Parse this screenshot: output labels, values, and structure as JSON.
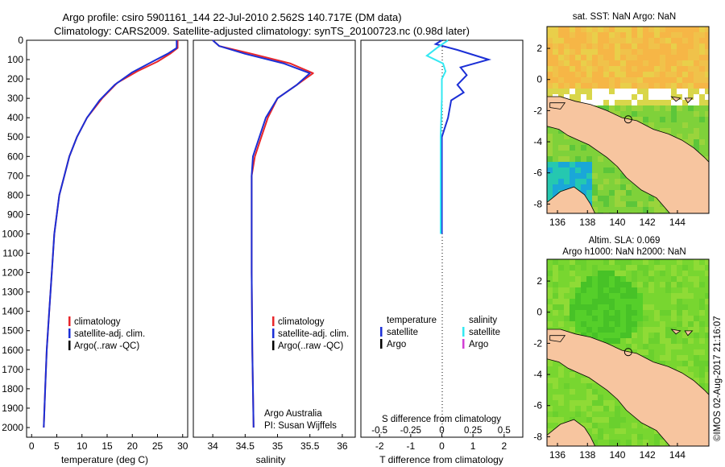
{
  "header": {
    "line1": "Argo profile: csiro 5901161_144 22-Jul-2010 2.562S 140.717E (DM data)",
    "line2": "Climatology: CARS2009. Satellite-adjusted climatology: synTS_20100723.nc (0.98d later)"
  },
  "colors": {
    "climatology": "#e8262a",
    "satellite": "#1b2fd6",
    "argo": "#000000",
    "sat_s": "#33e8f2",
    "argo_s": "#d23fd4",
    "land": "#f7c59f",
    "sea_warm": "#f4b042",
    "sea_green": "#2ac22a"
  },
  "chart_data": [
    {
      "type": "line",
      "xlabel": "temperature (deg C)",
      "xlim": [
        -1,
        31
      ],
      "xticks": [
        0,
        5,
        10,
        15,
        20,
        25,
        30
      ],
      "ylim": [
        0,
        2050
      ],
      "yticks": [
        0,
        100,
        200,
        300,
        400,
        500,
        600,
        700,
        800,
        900,
        1000,
        1100,
        1200,
        1300,
        1400,
        1500,
        1600,
        1700,
        1800,
        1900,
        2000
      ],
      "legend": [
        "climatology",
        "satellite-adj. clim.",
        "Argo(..raw -QC)"
      ],
      "series": [
        {
          "name": "climatology",
          "points": [
            [
              29,
              0
            ],
            [
              29,
              40
            ],
            [
              27.5,
              70
            ],
            [
              25,
              110
            ],
            [
              21,
              160
            ],
            [
              17,
              220
            ],
            [
              14,
              300
            ],
            [
              11,
              400
            ],
            [
              9,
              500
            ],
            [
              7.5,
              600
            ],
            [
              6.5,
              700
            ],
            [
              5.5,
              800
            ],
            [
              5,
              900
            ],
            [
              4.5,
              1000
            ],
            [
              4,
              1200
            ],
            [
              3.5,
              1400
            ],
            [
              3,
              1600
            ],
            [
              2.7,
              1800
            ],
            [
              2.4,
              2000
            ]
          ]
        },
        {
          "name": "satellite-adj. clim.",
          "points": [
            [
              28.8,
              0
            ],
            [
              28.8,
              40
            ],
            [
              27,
              70
            ],
            [
              24,
              110
            ],
            [
              20,
              165
            ],
            [
              16.5,
              230
            ],
            [
              13.5,
              310
            ],
            [
              11,
              400
            ],
            [
              9,
              500
            ],
            [
              7.5,
              600
            ],
            [
              6.5,
              700
            ],
            [
              5.5,
              800
            ],
            [
              5,
              900
            ],
            [
              4.5,
              1000
            ],
            [
              4,
              1200
            ],
            [
              3.5,
              1400
            ],
            [
              3,
              1600
            ],
            [
              2.7,
              1800
            ],
            [
              2.4,
              2000
            ]
          ]
        }
      ]
    },
    {
      "type": "line",
      "xlabel": "salinity",
      "xlim": [
        33.7,
        36.2
      ],
      "xticks": [
        34,
        34.5,
        35,
        35.5,
        36
      ],
      "ylim": [
        0,
        2050
      ],
      "legend": [
        "climatology",
        "satellite-adj. clim.",
        "Argo(..raw -QC)"
      ],
      "annotation": [
        "Argo Australia",
        "PI: Susan Wijffels"
      ],
      "series": [
        {
          "name": "climatology",
          "points": [
            [
              34,
              0
            ],
            [
              34.1,
              30
            ],
            [
              34.6,
              70
            ],
            [
              35.2,
              120
            ],
            [
              35.55,
              170
            ],
            [
              35.3,
              230
            ],
            [
              35,
              300
            ],
            [
              34.85,
              400
            ],
            [
              34.75,
              500
            ],
            [
              34.65,
              600
            ],
            [
              34.6,
              700
            ],
            [
              34.6,
              900
            ],
            [
              34.6,
              1200
            ],
            [
              34.61,
              1600
            ],
            [
              34.63,
              2000
            ]
          ]
        },
        {
          "name": "satellite-adj. clim.",
          "points": [
            [
              34,
              0
            ],
            [
              34.1,
              30
            ],
            [
              34.5,
              70
            ],
            [
              35.1,
              120
            ],
            [
              35.5,
              170
            ],
            [
              35.3,
              230
            ],
            [
              35,
              300
            ],
            [
              34.82,
              400
            ],
            [
              34.72,
              500
            ],
            [
              34.62,
              600
            ],
            [
              34.6,
              700
            ],
            [
              34.6,
              900
            ],
            [
              34.6,
              1200
            ],
            [
              34.61,
              1600
            ],
            [
              34.63,
              2000
            ]
          ]
        }
      ]
    },
    {
      "type": "line",
      "xlim_top": [
        -0.65,
        0.65
      ],
      "xticks_top": [
        -0.5,
        -0.25,
        0,
        0.25,
        0.5
      ],
      "xlim_bottom": [
        -2.6,
        2.6
      ],
      "xticks_bottom": [
        -2,
        -1,
        0,
        1,
        2
      ],
      "xlabel_top": "S difference from climatology",
      "xlabel_bottom": "T difference from climatology",
      "ylim": [
        0,
        2050
      ],
      "legend_left": [
        "temperature",
        "satellite",
        "Argo"
      ],
      "legend_right": [
        "salinity",
        "satellite",
        "Argo"
      ],
      "series": [
        {
          "name": "satellite",
          "quantity": "T",
          "points": [
            [
              0,
              0
            ],
            [
              -0.2,
              20
            ],
            [
              0.5,
              50
            ],
            [
              1.5,
              100
            ],
            [
              0.6,
              140
            ],
            [
              0.8,
              180
            ],
            [
              0.5,
              230
            ],
            [
              0.7,
              270
            ],
            [
              0.3,
              310
            ],
            [
              0.2,
              400
            ],
            [
              0,
              500
            ],
            [
              0,
              700
            ],
            [
              0,
              1000
            ]
          ]
        },
        {
          "name": "satellite",
          "quantity": "S",
          "points": [
            [
              0.05,
              0
            ],
            [
              -0.04,
              40
            ],
            [
              -0.12,
              80
            ],
            [
              0.01,
              120
            ],
            [
              0.03,
              160
            ],
            [
              0.0,
              200
            ],
            [
              0.0,
              300
            ],
            [
              -0.01,
              500
            ],
            [
              -0.01,
              700
            ],
            [
              -0.01,
              1000
            ]
          ]
        }
      ]
    },
    {
      "type": "heatmap",
      "title": "sat. SST: NaN Argo: NaN",
      "xticks": [
        136,
        138,
        140,
        142,
        144
      ],
      "yticks": [
        2,
        0,
        -2,
        -4,
        -6,
        -8
      ],
      "xlim": [
        135.3,
        146.1
      ],
      "ylim": [
        -8.6,
        3.4
      ],
      "marker": [
        140.717,
        -2.562
      ]
    },
    {
      "type": "heatmap",
      "title": "Altim. SLA: 0.069",
      "subtitle": "Argo h1000: NaN h2000: NaN",
      "xticks": [
        136,
        138,
        140,
        142,
        144
      ],
      "yticks": [
        2,
        0,
        -2,
        -4,
        -6,
        -8
      ],
      "xlim": [
        135.3,
        146.1
      ],
      "ylim": [
        -8.6,
        3.4
      ],
      "marker": [
        140.717,
        -2.562
      ]
    }
  ],
  "credit": "©IMOS 02-Aug-2017 21:16:07"
}
